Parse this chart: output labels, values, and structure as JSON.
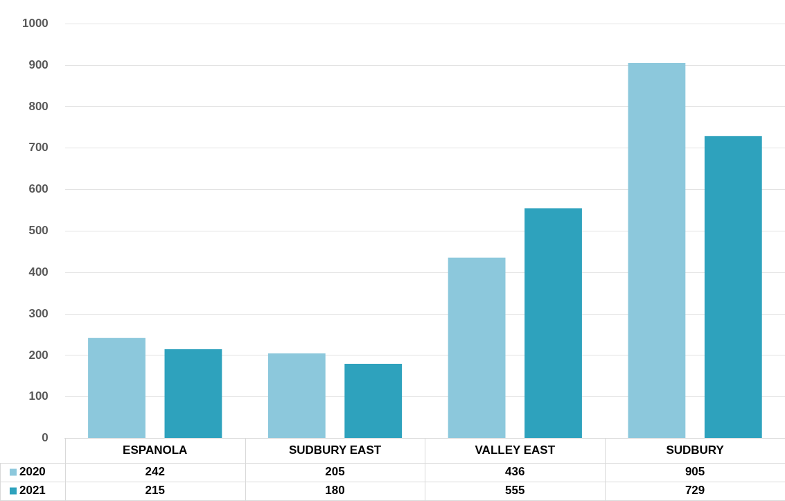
{
  "chart_data": {
    "type": "bar",
    "categories": [
      "ESPANOLA",
      "SUDBURY EAST",
      "VALLEY EAST",
      "SUDBURY"
    ],
    "series": [
      {
        "name": "2020",
        "color": "#8cc8dc",
        "values": [
          242,
          205,
          436,
          905
        ]
      },
      {
        "name": "2021",
        "color": "#2ea2bd",
        "values": [
          215,
          180,
          555,
          729
        ]
      }
    ],
    "ylim": [
      0,
      1000
    ],
    "yticks": [
      0,
      100,
      200,
      300,
      400,
      500,
      600,
      700,
      800,
      900,
      1000
    ],
    "grid": "y",
    "legend": "bottom",
    "data_labels": true
  }
}
